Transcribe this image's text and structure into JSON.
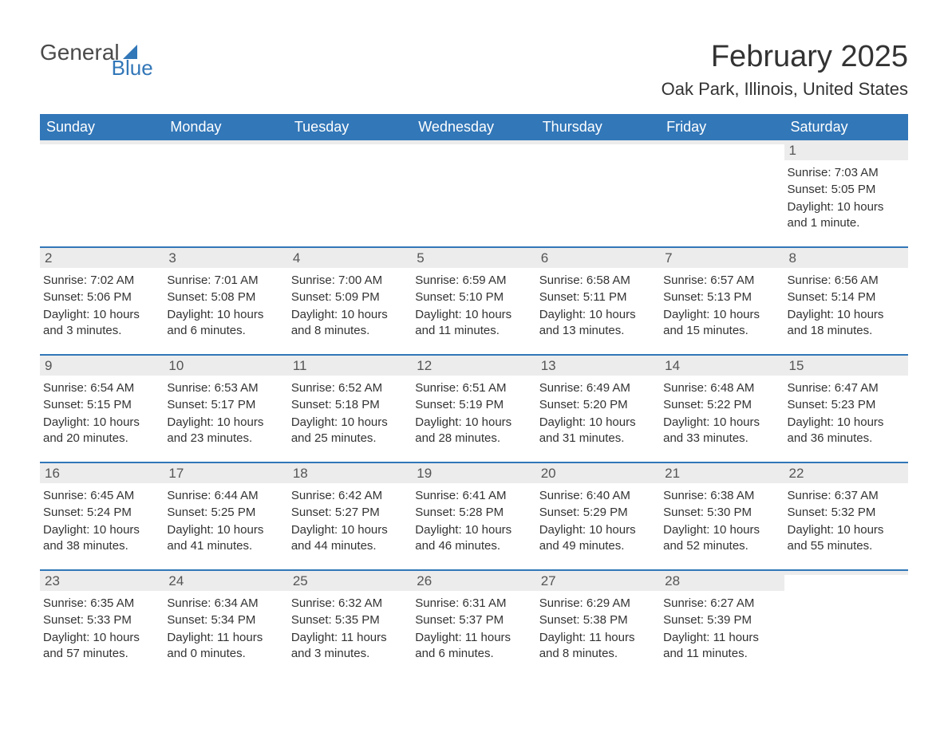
{
  "brand": {
    "word1": "General",
    "word2": "Blue"
  },
  "title": "February 2025",
  "subtitle": "Oak Park, Illinois, United States",
  "colors": {
    "accent": "#3277b8",
    "header_text": "#ffffff",
    "daynum_bg": "#ececec",
    "text": "#333333",
    "background": "#ffffff"
  },
  "layout": {
    "columns": 7,
    "rows": 5,
    "title_fontsize": 38,
    "subtitle_fontsize": 22,
    "dow_fontsize": 18,
    "body_fontsize": 15
  },
  "days_of_week": [
    "Sunday",
    "Monday",
    "Tuesday",
    "Wednesday",
    "Thursday",
    "Friday",
    "Saturday"
  ],
  "weeks": [
    [
      {
        "n": "",
        "sunrise": "",
        "sunset": "",
        "daylight": ""
      },
      {
        "n": "",
        "sunrise": "",
        "sunset": "",
        "daylight": ""
      },
      {
        "n": "",
        "sunrise": "",
        "sunset": "",
        "daylight": ""
      },
      {
        "n": "",
        "sunrise": "",
        "sunset": "",
        "daylight": ""
      },
      {
        "n": "",
        "sunrise": "",
        "sunset": "",
        "daylight": ""
      },
      {
        "n": "",
        "sunrise": "",
        "sunset": "",
        "daylight": ""
      },
      {
        "n": "1",
        "sunrise": "Sunrise: 7:03 AM",
        "sunset": "Sunset: 5:05 PM",
        "daylight": "Daylight: 10 hours and 1 minute."
      }
    ],
    [
      {
        "n": "2",
        "sunrise": "Sunrise: 7:02 AM",
        "sunset": "Sunset: 5:06 PM",
        "daylight": "Daylight: 10 hours and 3 minutes."
      },
      {
        "n": "3",
        "sunrise": "Sunrise: 7:01 AM",
        "sunset": "Sunset: 5:08 PM",
        "daylight": "Daylight: 10 hours and 6 minutes."
      },
      {
        "n": "4",
        "sunrise": "Sunrise: 7:00 AM",
        "sunset": "Sunset: 5:09 PM",
        "daylight": "Daylight: 10 hours and 8 minutes."
      },
      {
        "n": "5",
        "sunrise": "Sunrise: 6:59 AM",
        "sunset": "Sunset: 5:10 PM",
        "daylight": "Daylight: 10 hours and 11 minutes."
      },
      {
        "n": "6",
        "sunrise": "Sunrise: 6:58 AM",
        "sunset": "Sunset: 5:11 PM",
        "daylight": "Daylight: 10 hours and 13 minutes."
      },
      {
        "n": "7",
        "sunrise": "Sunrise: 6:57 AM",
        "sunset": "Sunset: 5:13 PM",
        "daylight": "Daylight: 10 hours and 15 minutes."
      },
      {
        "n": "8",
        "sunrise": "Sunrise: 6:56 AM",
        "sunset": "Sunset: 5:14 PM",
        "daylight": "Daylight: 10 hours and 18 minutes."
      }
    ],
    [
      {
        "n": "9",
        "sunrise": "Sunrise: 6:54 AM",
        "sunset": "Sunset: 5:15 PM",
        "daylight": "Daylight: 10 hours and 20 minutes."
      },
      {
        "n": "10",
        "sunrise": "Sunrise: 6:53 AM",
        "sunset": "Sunset: 5:17 PM",
        "daylight": "Daylight: 10 hours and 23 minutes."
      },
      {
        "n": "11",
        "sunrise": "Sunrise: 6:52 AM",
        "sunset": "Sunset: 5:18 PM",
        "daylight": "Daylight: 10 hours and 25 minutes."
      },
      {
        "n": "12",
        "sunrise": "Sunrise: 6:51 AM",
        "sunset": "Sunset: 5:19 PM",
        "daylight": "Daylight: 10 hours and 28 minutes."
      },
      {
        "n": "13",
        "sunrise": "Sunrise: 6:49 AM",
        "sunset": "Sunset: 5:20 PM",
        "daylight": "Daylight: 10 hours and 31 minutes."
      },
      {
        "n": "14",
        "sunrise": "Sunrise: 6:48 AM",
        "sunset": "Sunset: 5:22 PM",
        "daylight": "Daylight: 10 hours and 33 minutes."
      },
      {
        "n": "15",
        "sunrise": "Sunrise: 6:47 AM",
        "sunset": "Sunset: 5:23 PM",
        "daylight": "Daylight: 10 hours and 36 minutes."
      }
    ],
    [
      {
        "n": "16",
        "sunrise": "Sunrise: 6:45 AM",
        "sunset": "Sunset: 5:24 PM",
        "daylight": "Daylight: 10 hours and 38 minutes."
      },
      {
        "n": "17",
        "sunrise": "Sunrise: 6:44 AM",
        "sunset": "Sunset: 5:25 PM",
        "daylight": "Daylight: 10 hours and 41 minutes."
      },
      {
        "n": "18",
        "sunrise": "Sunrise: 6:42 AM",
        "sunset": "Sunset: 5:27 PM",
        "daylight": "Daylight: 10 hours and 44 minutes."
      },
      {
        "n": "19",
        "sunrise": "Sunrise: 6:41 AM",
        "sunset": "Sunset: 5:28 PM",
        "daylight": "Daylight: 10 hours and 46 minutes."
      },
      {
        "n": "20",
        "sunrise": "Sunrise: 6:40 AM",
        "sunset": "Sunset: 5:29 PM",
        "daylight": "Daylight: 10 hours and 49 minutes."
      },
      {
        "n": "21",
        "sunrise": "Sunrise: 6:38 AM",
        "sunset": "Sunset: 5:30 PM",
        "daylight": "Daylight: 10 hours and 52 minutes."
      },
      {
        "n": "22",
        "sunrise": "Sunrise: 6:37 AM",
        "sunset": "Sunset: 5:32 PM",
        "daylight": "Daylight: 10 hours and 55 minutes."
      }
    ],
    [
      {
        "n": "23",
        "sunrise": "Sunrise: 6:35 AM",
        "sunset": "Sunset: 5:33 PM",
        "daylight": "Daylight: 10 hours and 57 minutes."
      },
      {
        "n": "24",
        "sunrise": "Sunrise: 6:34 AM",
        "sunset": "Sunset: 5:34 PM",
        "daylight": "Daylight: 11 hours and 0 minutes."
      },
      {
        "n": "25",
        "sunrise": "Sunrise: 6:32 AM",
        "sunset": "Sunset: 5:35 PM",
        "daylight": "Daylight: 11 hours and 3 minutes."
      },
      {
        "n": "26",
        "sunrise": "Sunrise: 6:31 AM",
        "sunset": "Sunset: 5:37 PM",
        "daylight": "Daylight: 11 hours and 6 minutes."
      },
      {
        "n": "27",
        "sunrise": "Sunrise: 6:29 AM",
        "sunset": "Sunset: 5:38 PM",
        "daylight": "Daylight: 11 hours and 8 minutes."
      },
      {
        "n": "28",
        "sunrise": "Sunrise: 6:27 AM",
        "sunset": "Sunset: 5:39 PM",
        "daylight": "Daylight: 11 hours and 11 minutes."
      },
      {
        "n": "",
        "sunrise": "",
        "sunset": "",
        "daylight": ""
      }
    ]
  ]
}
